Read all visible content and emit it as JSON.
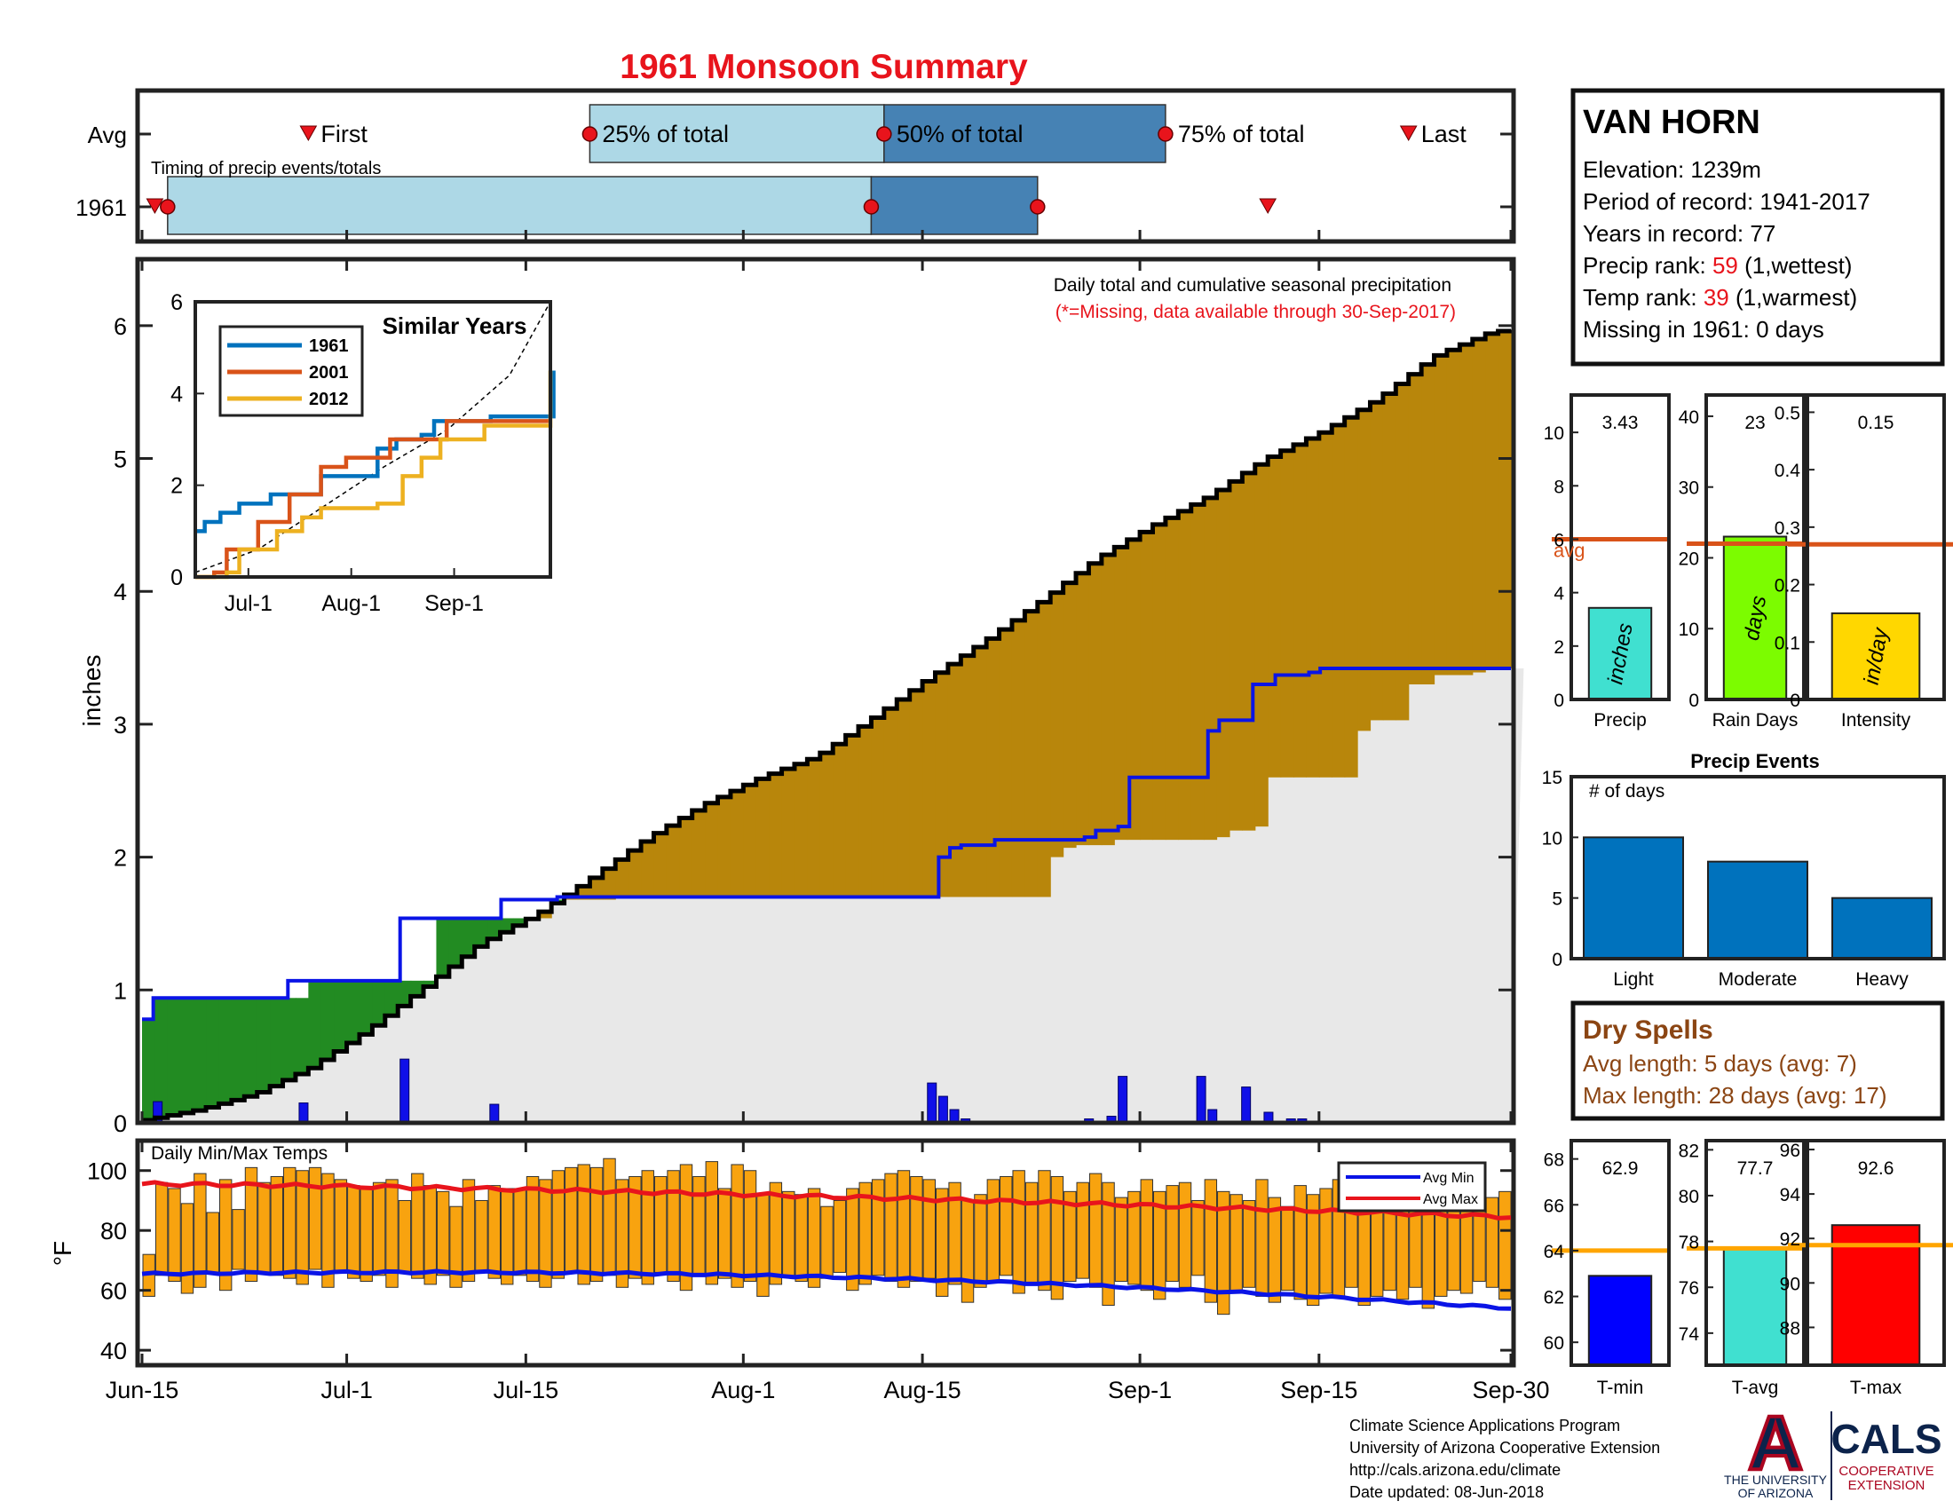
{
  "page": {
    "title": "1961 Monsoon Summary",
    "footer": {
      "lines": [
        "Climate Science Applications Program",
        "University of Arizona Cooperative Extension",
        "http://cals.arizona.edu/climate",
        " Date updated: 08-Jun-2018"
      ],
      "ua_logo_letter": "A",
      "ua_line1": "THE UNIVERSITY",
      "ua_line2": "OF ARIZONA",
      "cals": "CALS",
      "cals_line1": "COOPERATIVE",
      "cals_line2": "EXTENSION"
    },
    "colors": {
      "title": "#e8141c",
      "highlight": "#e8141c",
      "dry": "#8b4513"
    }
  },
  "station": {
    "name": "VAN HORN",
    "elevation": "Elevation: 1239m",
    "period": "Period of record: 1941-2017",
    "years": "Years in record: 77",
    "precip_rank_label": "Precip rank: ",
    "precip_rank_value": "59",
    "precip_rank_note": " (1,wettest)",
    "temp_rank_label": "Temp rank: ",
    "temp_rank_value": "39",
    "temp_rank_note": " (1,warmest)",
    "missing": "Missing in 1961: 0 days"
  },
  "dry_spells": {
    "title": "Dry Spells",
    "avg": "Avg length: 5 days (avg: 7)",
    "max": "Max length: 28 days (avg: 17)"
  },
  "chart_data": [
    {
      "type": "timeline",
      "rows": [
        "Avg",
        "1961"
      ],
      "annotation": "Timing of precip events/totals",
      "labels": [
        "First",
        "25% of total",
        "50% of total",
        "75% of total",
        "Last"
      ],
      "avg": {
        "first": "Jun-27",
        "p25": "Jul-19",
        "p50": "Aug-11",
        "p75": "Sep-2",
        "last": "Sep-21"
      },
      "year": {
        "first": "Jun-15",
        "p25": "Jun-16",
        "p50": "Aug-10",
        "p75": "Aug-23",
        "last": "Sep-10"
      },
      "colors": {
        "early": "#add8e6",
        "late": "#4682b4",
        "marker": "#e8141c"
      }
    },
    {
      "type": "area",
      "title": "Daily total and cumulative seasonal precipitation",
      "subtitle": "(*=Missing, data available through 30-Sep-2017)",
      "ylabel": "inches",
      "ylim": [
        0,
        6.5
      ],
      "yticks": [
        0,
        1,
        2,
        3,
        4,
        5,
        6
      ],
      "xticks": [
        "Jun-15",
        "Jul-1",
        "Jul-15",
        "Aug-1",
        "Aug-15",
        "Sep-1",
        "Sep-15",
        "Sep-30"
      ],
      "avg_cumulative": [
        [
          0,
          0.02
        ],
        [
          5,
          0.1
        ],
        [
          10,
          0.22
        ],
        [
          15,
          0.42
        ],
        [
          20,
          0.7
        ],
        [
          25,
          1.02
        ],
        [
          30,
          1.35
        ],
        [
          35,
          1.57
        ],
        [
          40,
          1.85
        ],
        [
          45,
          2.15
        ],
        [
          50,
          2.4
        ],
        [
          55,
          2.6
        ],
        [
          60,
          2.76
        ],
        [
          65,
          3.05
        ],
        [
          70,
          3.35
        ],
        [
          75,
          3.63
        ],
        [
          80,
          3.93
        ],
        [
          85,
          4.25
        ],
        [
          90,
          4.5
        ],
        [
          95,
          4.72
        ],
        [
          100,
          5.0
        ],
        [
          105,
          5.2
        ],
        [
          110,
          5.45
        ],
        [
          115,
          5.77
        ],
        [
          120,
          5.95
        ],
        [
          122,
          5.97
        ]
      ],
      "year_cumulative": [
        [
          0,
          0.78
        ],
        [
          1,
          0.94
        ],
        [
          12,
          0.94
        ],
        [
          13,
          1.07
        ],
        [
          22,
          1.07
        ],
        [
          23,
          1.54
        ],
        [
          31,
          1.54
        ],
        [
          32,
          1.68
        ],
        [
          37,
          1.7
        ],
        [
          70,
          1.7
        ],
        [
          71,
          2.0
        ],
        [
          72,
          2.07
        ],
        [
          73,
          2.09
        ],
        [
          76,
          2.13
        ],
        [
          84,
          2.15
        ],
        [
          85,
          2.2
        ],
        [
          87,
          2.23
        ],
        [
          88,
          2.6
        ],
        [
          94,
          2.6
        ],
        [
          95,
          2.95
        ],
        [
          96,
          3.03
        ],
        [
          98,
          3.03
        ],
        [
          99,
          3.3
        ],
        [
          101,
          3.37
        ],
        [
          104,
          3.39
        ],
        [
          105,
          3.42
        ],
        [
          122,
          3.42
        ]
      ],
      "daily_precip": [
        [
          1,
          0.16
        ],
        [
          14,
          0.15
        ],
        [
          23,
          0.48
        ],
        [
          31,
          0.14
        ],
        [
          70,
          0.3
        ],
        [
          71,
          0.2
        ],
        [
          72,
          0.1
        ],
        [
          73,
          0.03
        ],
        [
          84,
          0.03
        ],
        [
          86,
          0.05
        ],
        [
          87,
          0.35
        ],
        [
          94,
          0.35
        ],
        [
          95,
          0.1
        ],
        [
          98,
          0.27
        ],
        [
          100,
          0.08
        ],
        [
          102,
          0.03
        ],
        [
          103,
          0.03
        ]
      ],
      "colors": {
        "above": "#b8860b",
        "below": "#228b22",
        "fill": "#e8e8e8",
        "avg_line": "#000000",
        "year_line": "#0a14e6",
        "bars": "#1010e8"
      }
    },
    {
      "type": "line",
      "title": "Similar Years",
      "xticks": [
        "Jul-1",
        "Aug-1",
        "Sep-1"
      ],
      "yticks": [
        0,
        2,
        4,
        6
      ],
      "ylim": [
        0,
        6
      ],
      "series": [
        {
          "name": "1961",
          "color": "#0072bd",
          "values": [
            [
              0,
              1.0
            ],
            [
              3,
              1.2
            ],
            [
              8,
              1.4
            ],
            [
              14,
              1.6
            ],
            [
              22,
              1.6
            ],
            [
              24,
              1.8
            ],
            [
              36,
              1.8
            ],
            [
              40,
              2.2
            ],
            [
              52,
              2.2
            ],
            [
              58,
              2.8
            ],
            [
              64,
              3.0
            ],
            [
              72,
              3.1
            ],
            [
              76,
              3.4
            ],
            [
              88,
              3.4
            ],
            [
              94,
              3.5
            ],
            [
              100,
              3.5
            ],
            [
              108,
              3.5
            ],
            [
              113,
              3.5
            ],
            [
              114,
              4.5
            ]
          ]
        },
        {
          "name": "2001",
          "color": "#d95319",
          "values": [
            [
              0,
              0
            ],
            [
              6,
              0.1
            ],
            [
              10,
              0.6
            ],
            [
              20,
              1.2
            ],
            [
              24,
              1.2
            ],
            [
              30,
              1.8
            ],
            [
              40,
              2.4
            ],
            [
              48,
              2.6
            ],
            [
              56,
              2.6
            ],
            [
              62,
              3.0
            ],
            [
              72,
              3.0
            ],
            [
              80,
              3.4
            ],
            [
              90,
              3.4
            ],
            [
              98,
              3.4
            ],
            [
              113,
              3.4
            ]
          ]
        },
        {
          "name": "2012",
          "color": "#edb120",
          "values": [
            [
              0,
              0
            ],
            [
              10,
              0.1
            ],
            [
              14,
              0.6
            ],
            [
              22,
              0.6
            ],
            [
              26,
              1.0
            ],
            [
              34,
              1.3
            ],
            [
              40,
              1.5
            ],
            [
              52,
              1.5
            ],
            [
              58,
              1.6
            ],
            [
              66,
              2.2
            ],
            [
              72,
              2.6
            ],
            [
              78,
              3.0
            ],
            [
              86,
              3.0
            ],
            [
              92,
              3.3
            ],
            [
              106,
              3.3
            ],
            [
              113,
              4.5
            ]
          ]
        }
      ],
      "avg_line": [
        [
          0,
          0.1
        ],
        [
          20,
          0.6
        ],
        [
          40,
          1.5
        ],
        [
          60,
          2.4
        ],
        [
          80,
          3.2
        ],
        [
          100,
          4.4
        ],
        [
          113,
          6.0
        ]
      ]
    },
    {
      "type": "bar",
      "title": "Daily Min/Max Temps",
      "ylabel": "°F",
      "ylim": [
        35,
        110
      ],
      "yticks": [
        40,
        60,
        80,
        100
      ],
      "legend": [
        "Avg Min",
        "Avg Max"
      ],
      "colors": {
        "bars": "#f8a30f",
        "avg_min": "#0a14e6",
        "avg_max": "#e8141c"
      }
    },
    {
      "type": "bar",
      "panels": [
        {
          "label": "Precip",
          "value": "3.43",
          "unit": "inches",
          "ylim": [
            0,
            11.4
          ],
          "yticks": [
            0,
            2,
            4,
            6,
            8,
            10
          ],
          "bar": 3.43,
          "avg": 6.0,
          "color": "#40e0d0",
          "avg_label": "avg"
        },
        {
          "label": "Rain Days",
          "value": "23",
          "unit": "days",
          "ylim": [
            0,
            43
          ],
          "yticks": [
            0,
            10,
            20,
            30,
            40
          ],
          "bar": 23,
          "avg": 22,
          "color": "#7cfc00"
        },
        {
          "label": "Intensity",
          "value": "0.15",
          "unit": "in/day",
          "ylim": [
            0,
            0.53
          ],
          "yticks": [
            0,
            0.1,
            0.2,
            0.3,
            0.4,
            0.5
          ],
          "bar": 0.15,
          "avg": 0.27,
          "color": "#ffd700"
        }
      ],
      "avg_color": "#d95319"
    },
    {
      "type": "bar",
      "title": "Precip Events",
      "annotation": "# of days",
      "categories": [
        "Light",
        "Moderate",
        "Heavy"
      ],
      "values": [
        10,
        8,
        5
      ],
      "ylim": [
        0,
        15
      ],
      "yticks": [
        0,
        5,
        10,
        15
      ],
      "color": "#0072bd"
    },
    {
      "type": "bar",
      "panels": [
        {
          "label": "T-min",
          "value": "62.9",
          "ylim": [
            59,
            68.8
          ],
          "yticks": [
            60,
            62,
            64,
            66,
            68
          ],
          "bar": 62.9,
          "avg": 64.0,
          "color": "#0000ff"
        },
        {
          "label": "T-avg",
          "value": "77.7",
          "ylim": [
            72.6,
            82.4
          ],
          "yticks": [
            74,
            76,
            78,
            80,
            82
          ],
          "bar": 77.7,
          "avg": 77.7,
          "color": "#40e0d0"
        },
        {
          "label": "T-max",
          "value": "92.6",
          "ylim": [
            86.3,
            96.4
          ],
          "yticks": [
            88,
            90,
            92,
            94,
            96
          ],
          "bar": 92.6,
          "avg": 91.7,
          "color": "#ff0000"
        }
      ],
      "avg_color": "#ffa500"
    }
  ]
}
